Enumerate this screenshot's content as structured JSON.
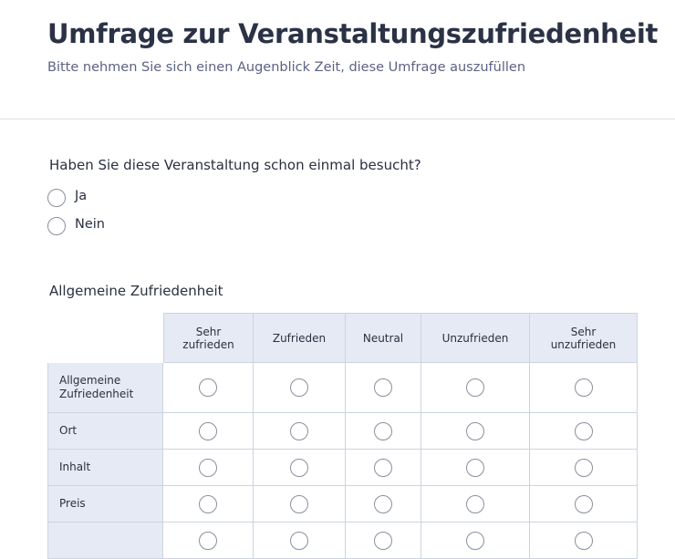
{
  "header": {
    "title": "Umfrage zur Veranstaltungszufriedenheit",
    "subtitle": "Bitte nehmen Sie sich einen Augenblick Zeit, diese Umfrage auszufüllen"
  },
  "question1": {
    "text": "Haben Sie diese Veranstaltung schon einmal besucht?",
    "options": [
      "Ja",
      "Nein"
    ]
  },
  "matrix": {
    "title": "Allgemeine Zufriedenheit",
    "columns": [
      "Sehr zufrieden",
      "Zufrieden",
      "Neutral",
      "Unzufrieden",
      "Sehr unzufrieden"
    ],
    "rows": [
      "Allgemeine Zufriedenheit",
      "Ort",
      "Inhalt",
      "Preis"
    ]
  }
}
